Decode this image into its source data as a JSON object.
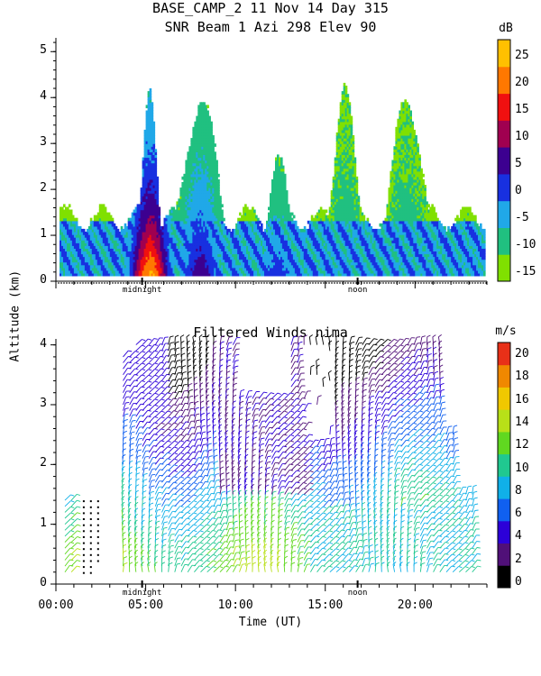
{
  "header": {
    "line1": "BASE_CAMP_2   11 Nov 14 Day 315",
    "line2": "SNR Beam 1 Azi 298 Elev 90"
  },
  "y_axis_label": "Altitude (km)",
  "x_axis_label": "Time (UT)",
  "chart_data": [
    {
      "type": "heatmap",
      "title": "SNR Beam 1 Azi 298 Elev 90",
      "ylabel": "Altitude (km)",
      "ylim": [
        0,
        5.3
      ],
      "yticks": [
        "0",
        "1",
        "2",
        "3",
        "4",
        "5"
      ],
      "xlim": [
        0,
        24
      ],
      "markers": [
        "midnight",
        "noon"
      ],
      "colorbar": {
        "unit": "dB",
        "range": [
          -15,
          30
        ],
        "tick_labels": [
          "25",
          "20",
          "15",
          "10",
          "5",
          "0",
          "-5",
          "-10",
          "-15"
        ],
        "colors": [
          "#80e000",
          "#20c080",
          "#20a8e8",
          "#1830e0",
          "#3c0090",
          "#a00050",
          "#f01010",
          "#ff7800",
          "#ffc000"
        ]
      },
      "features": [
        {
          "time": 5.2,
          "alt_top": 4.2,
          "peak_dB": 28
        },
        {
          "time": 8.0,
          "alt_top": 3.9,
          "peak_dB": 10
        },
        {
          "time": 12.3,
          "alt_top": 2.6,
          "peak_dB": 5
        },
        {
          "time": 16.0,
          "alt_top": 4.4,
          "peak_dB": -5
        },
        {
          "time": 19.5,
          "alt_top": 4.0,
          "peak_dB": -5
        }
      ]
    },
    {
      "type": "scatter",
      "title": "Filtered Winds nima",
      "ylabel": "Altitude (km)",
      "xlabel": "Time (UT)",
      "ylim": [
        0,
        4.1
      ],
      "yticks": [
        "0",
        "1",
        "2",
        "3",
        "4"
      ],
      "xlim": [
        0,
        24
      ],
      "xticks": [
        "00:00",
        "05:00",
        "10:00",
        "15:00",
        "20:00"
      ],
      "markers": [
        "midnight",
        "noon"
      ],
      "colorbar": {
        "unit": "m/s",
        "range": [
          0,
          22
        ],
        "tick_labels": [
          "20",
          "18",
          "16",
          "14",
          "12",
          "10",
          "8",
          "6",
          "4",
          "2",
          "0"
        ],
        "colors": [
          "#000000",
          "#501078",
          "#2c00d8",
          "#1060f0",
          "#10b0e8",
          "#20c890",
          "#60d820",
          "#b8e018",
          "#f0c800",
          "#f08800",
          "#e83018"
        ]
      }
    }
  ]
}
